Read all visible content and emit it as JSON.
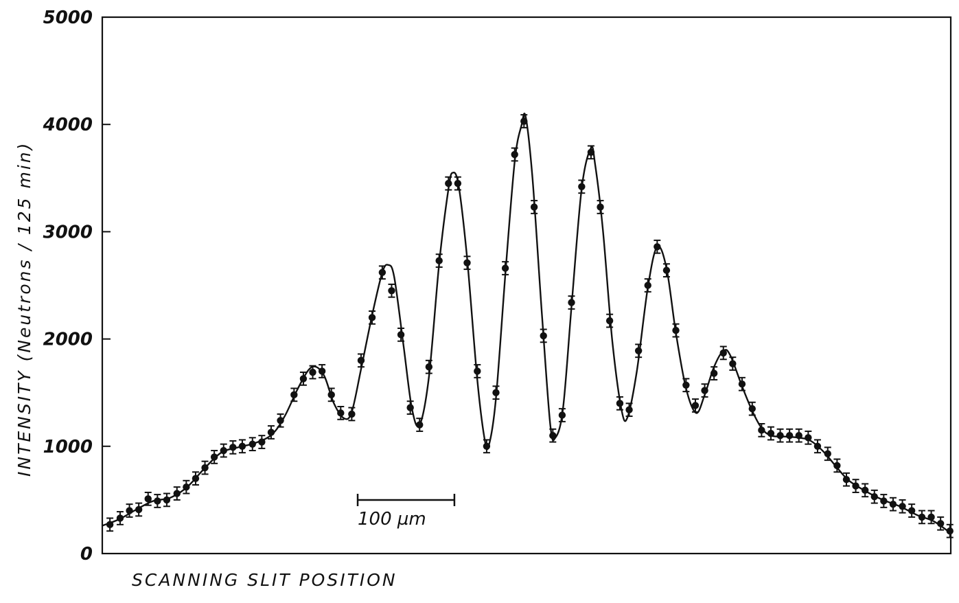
{
  "chart_data": {
    "type": "scatter",
    "title": "",
    "xlabel": "SCANNING SLIT POSITION",
    "ylabel": "INTENSITY (Neutrons / 125 min)",
    "ylim": [
      0,
      5000
    ],
    "xlim": [
      0,
      1
    ],
    "yticks": [
      "0",
      "1000",
      "2000",
      "3000",
      "4000",
      "5000"
    ],
    "x_tick_labels": [],
    "grid": false,
    "scale_bar": {
      "label": "100 µm",
      "x_from": 0.301,
      "x_to": 0.415
    },
    "colors": {
      "ink": "#111111",
      "background": "#ffffff"
    },
    "series": [
      {
        "name": "",
        "style": "points-with-error-bars-and-fitted-curve",
        "points": [
          {
            "x": 0.009,
            "y": 270
          },
          {
            "x": 0.021,
            "y": 330
          },
          {
            "x": 0.032,
            "y": 400
          },
          {
            "x": 0.043,
            "y": 410
          },
          {
            "x": 0.054,
            "y": 510
          },
          {
            "x": 0.065,
            "y": 490
          },
          {
            "x": 0.076,
            "y": 500
          },
          {
            "x": 0.088,
            "y": 560
          },
          {
            "x": 0.099,
            "y": 620
          },
          {
            "x": 0.11,
            "y": 700
          },
          {
            "x": 0.121,
            "y": 800
          },
          {
            "x": 0.132,
            "y": 900
          },
          {
            "x": 0.143,
            "y": 960
          },
          {
            "x": 0.154,
            "y": 990
          },
          {
            "x": 0.165,
            "y": 1000
          },
          {
            "x": 0.177,
            "y": 1020
          },
          {
            "x": 0.188,
            "y": 1040
          },
          {
            "x": 0.199,
            "y": 1130
          },
          {
            "x": 0.21,
            "y": 1240
          },
          {
            "x": 0.226,
            "y": 1480
          },
          {
            "x": 0.237,
            "y": 1630
          },
          {
            "x": 0.248,
            "y": 1690
          },
          {
            "x": 0.259,
            "y": 1700
          },
          {
            "x": 0.27,
            "y": 1480
          },
          {
            "x": 0.281,
            "y": 1310
          },
          {
            "x": 0.294,
            "y": 1300
          },
          {
            "x": 0.305,
            "y": 1800
          },
          {
            "x": 0.318,
            "y": 2200
          },
          {
            "x": 0.33,
            "y": 2620
          },
          {
            "x": 0.341,
            "y": 2450
          },
          {
            "x": 0.352,
            "y": 2040
          },
          {
            "x": 0.363,
            "y": 1360
          },
          {
            "x": 0.374,
            "y": 1200
          },
          {
            "x": 0.385,
            "y": 1740
          },
          {
            "x": 0.397,
            "y": 2730
          },
          {
            "x": 0.408,
            "y": 3450
          },
          {
            "x": 0.419,
            "y": 3450
          },
          {
            "x": 0.43,
            "y": 2710
          },
          {
            "x": 0.442,
            "y": 1700
          },
          {
            "x": 0.453,
            "y": 1000
          },
          {
            "x": 0.464,
            "y": 1500
          },
          {
            "x": 0.475,
            "y": 2660
          },
          {
            "x": 0.486,
            "y": 3720
          },
          {
            "x": 0.497,
            "y": 4030
          },
          {
            "x": 0.509,
            "y": 3230
          },
          {
            "x": 0.52,
            "y": 2030
          },
          {
            "x": 0.531,
            "y": 1100
          },
          {
            "x": 0.542,
            "y": 1290
          },
          {
            "x": 0.553,
            "y": 2340
          },
          {
            "x": 0.565,
            "y": 3420
          },
          {
            "x": 0.576,
            "y": 3740
          },
          {
            "x": 0.587,
            "y": 3230
          },
          {
            "x": 0.598,
            "y": 2170
          },
          {
            "x": 0.61,
            "y": 1400
          },
          {
            "x": 0.621,
            "y": 1340
          },
          {
            "x": 0.632,
            "y": 1890
          },
          {
            "x": 0.643,
            "y": 2500
          },
          {
            "x": 0.654,
            "y": 2860
          },
          {
            "x": 0.665,
            "y": 2640
          },
          {
            "x": 0.676,
            "y": 2080
          },
          {
            "x": 0.688,
            "y": 1570
          },
          {
            "x": 0.699,
            "y": 1380
          },
          {
            "x": 0.71,
            "y": 1520
          },
          {
            "x": 0.721,
            "y": 1680
          },
          {
            "x": 0.732,
            "y": 1870
          },
          {
            "x": 0.743,
            "y": 1770
          },
          {
            "x": 0.754,
            "y": 1580
          },
          {
            "x": 0.766,
            "y": 1350
          },
          {
            "x": 0.777,
            "y": 1150
          },
          {
            "x": 0.788,
            "y": 1120
          },
          {
            "x": 0.799,
            "y": 1100
          },
          {
            "x": 0.81,
            "y": 1100
          },
          {
            "x": 0.821,
            "y": 1100
          },
          {
            "x": 0.832,
            "y": 1080
          },
          {
            "x": 0.843,
            "y": 1000
          },
          {
            "x": 0.855,
            "y": 930
          },
          {
            "x": 0.866,
            "y": 820
          },
          {
            "x": 0.877,
            "y": 690
          },
          {
            "x": 0.888,
            "y": 630
          },
          {
            "x": 0.899,
            "y": 590
          },
          {
            "x": 0.91,
            "y": 530
          },
          {
            "x": 0.921,
            "y": 490
          },
          {
            "x": 0.932,
            "y": 460
          },
          {
            "x": 0.943,
            "y": 440
          },
          {
            "x": 0.954,
            "y": 400
          },
          {
            "x": 0.966,
            "y": 340
          },
          {
            "x": 0.977,
            "y": 340
          },
          {
            "x": 0.988,
            "y": 280
          },
          {
            "x": 0.999,
            "y": 210
          }
        ],
        "error": 60
      }
    ],
    "fit_curve": [
      {
        "x": 0.0,
        "y": 260
      },
      {
        "x": 0.02,
        "y": 320
      },
      {
        "x": 0.04,
        "y": 410
      },
      {
        "x": 0.06,
        "y": 490
      },
      {
        "x": 0.08,
        "y": 520
      },
      {
        "x": 0.1,
        "y": 620
      },
      {
        "x": 0.12,
        "y": 790
      },
      {
        "x": 0.14,
        "y": 940
      },
      {
        "x": 0.16,
        "y": 990
      },
      {
        "x": 0.18,
        "y": 1030
      },
      {
        "x": 0.2,
        "y": 1110
      },
      {
        "x": 0.215,
        "y": 1280
      },
      {
        "x": 0.23,
        "y": 1530
      },
      {
        "x": 0.243,
        "y": 1710
      },
      {
        "x": 0.252,
        "y": 1740
      },
      {
        "x": 0.262,
        "y": 1650
      },
      {
        "x": 0.273,
        "y": 1400
      },
      {
        "x": 0.285,
        "y": 1260
      },
      {
        "x": 0.294,
        "y": 1320
      },
      {
        "x": 0.305,
        "y": 1720
      },
      {
        "x": 0.318,
        "y": 2220
      },
      {
        "x": 0.33,
        "y": 2620
      },
      {
        "x": 0.337,
        "y": 2690
      },
      {
        "x": 0.344,
        "y": 2580
      },
      {
        "x": 0.355,
        "y": 1940
      },
      {
        "x": 0.365,
        "y": 1350
      },
      {
        "x": 0.374,
        "y": 1200
      },
      {
        "x": 0.385,
        "y": 1650
      },
      {
        "x": 0.397,
        "y": 2700
      },
      {
        "x": 0.408,
        "y": 3400
      },
      {
        "x": 0.413,
        "y": 3550
      },
      {
        "x": 0.42,
        "y": 3430
      },
      {
        "x": 0.43,
        "y": 2750
      },
      {
        "x": 0.442,
        "y": 1620
      },
      {
        "x": 0.451,
        "y": 1050
      },
      {
        "x": 0.456,
        "y": 1020
      },
      {
        "x": 0.464,
        "y": 1450
      },
      {
        "x": 0.475,
        "y": 2600
      },
      {
        "x": 0.486,
        "y": 3650
      },
      {
        "x": 0.494,
        "y": 3990
      },
      {
        "x": 0.499,
        "y": 4070
      },
      {
        "x": 0.507,
        "y": 3500
      },
      {
        "x": 0.518,
        "y": 2250
      },
      {
        "x": 0.528,
        "y": 1200
      },
      {
        "x": 0.534,
        "y": 1080
      },
      {
        "x": 0.543,
        "y": 1350
      },
      {
        "x": 0.553,
        "y": 2300
      },
      {
        "x": 0.565,
        "y": 3400
      },
      {
        "x": 0.576,
        "y": 3780
      },
      {
        "x": 0.581,
        "y": 3620
      },
      {
        "x": 0.59,
        "y": 3020
      },
      {
        "x": 0.601,
        "y": 1990
      },
      {
        "x": 0.612,
        "y": 1340
      },
      {
        "x": 0.619,
        "y": 1270
      },
      {
        "x": 0.63,
        "y": 1700
      },
      {
        "x": 0.643,
        "y": 2480
      },
      {
        "x": 0.654,
        "y": 2860
      },
      {
        "x": 0.665,
        "y": 2660
      },
      {
        "x": 0.676,
        "y": 2060
      },
      {
        "x": 0.688,
        "y": 1540
      },
      {
        "x": 0.7,
        "y": 1310
      },
      {
        "x": 0.71,
        "y": 1480
      },
      {
        "x": 0.721,
        "y": 1740
      },
      {
        "x": 0.732,
        "y": 1890
      },
      {
        "x": 0.74,
        "y": 1850
      },
      {
        "x": 0.754,
        "y": 1560
      },
      {
        "x": 0.766,
        "y": 1330
      },
      {
        "x": 0.777,
        "y": 1170
      },
      {
        "x": 0.788,
        "y": 1100
      },
      {
        "x": 0.805,
        "y": 1090
      },
      {
        "x": 0.821,
        "y": 1080
      },
      {
        "x": 0.835,
        "y": 1050
      },
      {
        "x": 0.85,
        "y": 950
      },
      {
        "x": 0.866,
        "y": 800
      },
      {
        "x": 0.88,
        "y": 680
      },
      {
        "x": 0.9,
        "y": 580
      },
      {
        "x": 0.92,
        "y": 500
      },
      {
        "x": 0.94,
        "y": 440
      },
      {
        "x": 0.96,
        "y": 360
      },
      {
        "x": 0.98,
        "y": 300
      },
      {
        "x": 1.0,
        "y": 190
      }
    ]
  }
}
